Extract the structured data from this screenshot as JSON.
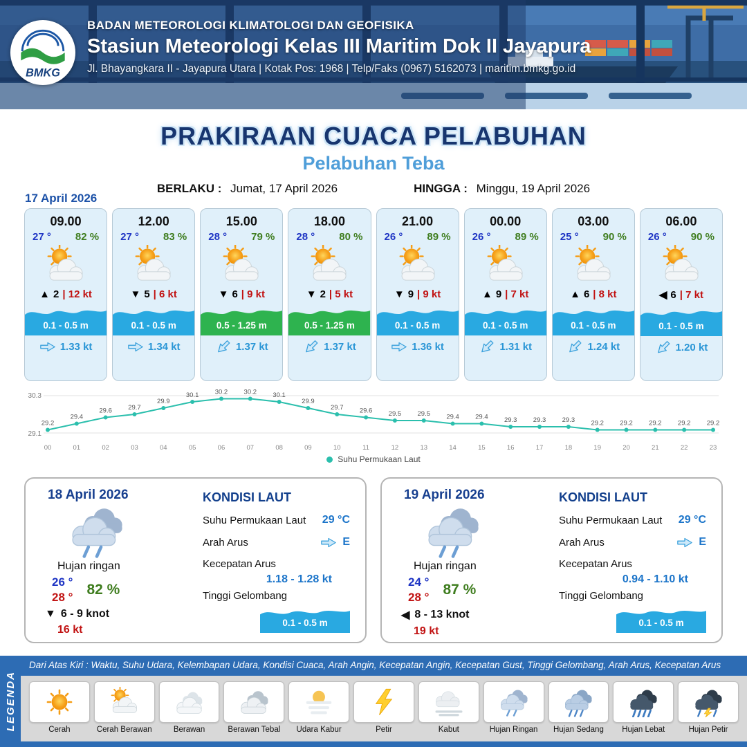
{
  "colors": {
    "header_navy": "#1d3a66",
    "wave_blue": "#29a9e1",
    "wave_green": "#2eb34f",
    "temp_blue": "#1f35c4",
    "humidity_green": "#3f7d1f",
    "gust_red": "#c11212",
    "legend_blue": "#2d6cb4"
  },
  "header": {
    "logo_text": "BMKG",
    "org_line": "BADAN METEOROLOGI KLIMATOLOGI DAN GEOFISIKA",
    "station_line": "Stasiun Meteorologi Kelas III Maritim Dok II Jayapura",
    "address_line": "Jl. Bhayangkara II - Jayapura Utara | Kotak Pos: 1968 | Telp/Faks (0967) 5162073 | maritim.bmkg.go.id"
  },
  "title": {
    "main": "PRAKIRAAN CUACA PELABUHAN",
    "sub": "Pelabuhan Teba",
    "berlaku_label": "BERLAKU :",
    "berlaku_value": "Jumat, 17 April 2026",
    "hingga_label": "HINGGA :",
    "hingga_value": "Minggu, 19 April 2026"
  },
  "forecast": {
    "date": "17 April 2026",
    "cards": [
      {
        "time": "09.00",
        "temp": "27 °",
        "humidity": "82 %",
        "icon": "cerah-berawan",
        "wind_arrow": "▲",
        "wind_speed": "2",
        "wind_gust": "| 12 kt",
        "wave": "0.1 - 0.5 m",
        "wave_color": "blue",
        "current": "1.33 kt",
        "current_dir_deg": 0
      },
      {
        "time": "12.00",
        "temp": "27 °",
        "humidity": "83 %",
        "icon": "cerah-berawan",
        "wind_arrow": "▼",
        "wind_speed": "5",
        "wind_gust": "| 6 kt",
        "wave": "0.1 - 0.5 m",
        "wave_color": "blue",
        "current": "1.34 kt",
        "current_dir_deg": 0
      },
      {
        "time": "15.00",
        "temp": "28 °",
        "humidity": "79 %",
        "icon": "cerah-berawan",
        "wind_arrow": "▼",
        "wind_speed": "6",
        "wind_gust": "| 9 kt",
        "wave": "0.5 - 1.25 m",
        "wave_color": "green",
        "current": "1.37 kt",
        "current_dir_deg": 135
      },
      {
        "time": "18.00",
        "temp": "28 °",
        "humidity": "80 %",
        "icon": "cerah-berawan",
        "wind_arrow": "▼",
        "wind_speed": "2",
        "wind_gust": "| 5 kt",
        "wave": "0.5 - 1.25 m",
        "wave_color": "green",
        "current": "1.37 kt",
        "current_dir_deg": 135
      },
      {
        "time": "21.00",
        "temp": "26 °",
        "humidity": "89 %",
        "icon": "cerah-berawan",
        "wind_arrow": "▼",
        "wind_speed": "9",
        "wind_gust": "| 9 kt",
        "wave": "0.1 - 0.5 m",
        "wave_color": "blue",
        "current": "1.36 kt",
        "current_dir_deg": 0
      },
      {
        "time": "00.00",
        "temp": "26 °",
        "humidity": "89 %",
        "icon": "cerah-berawan",
        "wind_arrow": "▲",
        "wind_speed": "9",
        "wind_gust": "| 7 kt",
        "wave": "0.1 - 0.5 m",
        "wave_color": "blue",
        "current": "1.31 kt",
        "current_dir_deg": 135
      },
      {
        "time": "03.00",
        "temp": "25 °",
        "humidity": "90 %",
        "icon": "cerah-berawan",
        "wind_arrow": "▲",
        "wind_speed": "6",
        "wind_gust": "| 8 kt",
        "wave": "0.1 - 0.5 m",
        "wave_color": "blue",
        "current": "1.24 kt",
        "current_dir_deg": 135
      },
      {
        "time": "06.00",
        "temp": "26 °",
        "humidity": "90 %",
        "icon": "cerah-berawan",
        "wind_arrow": "◀",
        "wind_speed": "6",
        "wind_gust": "| 7 kt",
        "wave": "0.1 - 0.5 m",
        "wave_color": "blue",
        "current": "1.20 kt",
        "current_dir_deg": 135
      }
    ]
  },
  "chart_data": {
    "type": "line",
    "x": [
      "00",
      "01",
      "02",
      "03",
      "04",
      "05",
      "06",
      "07",
      "08",
      "09",
      "10",
      "11",
      "12",
      "13",
      "14",
      "15",
      "16",
      "17",
      "18",
      "19",
      "20",
      "21",
      "22",
      "23"
    ],
    "values": [
      29.2,
      29.4,
      29.6,
      29.7,
      29.9,
      30.1,
      30.2,
      30.2,
      30.1,
      29.9,
      29.7,
      29.6,
      29.5,
      29.5,
      29.4,
      29.4,
      29.3,
      29.3,
      29.3,
      29.2,
      29.2,
      29.2,
      29.2,
      29.2
    ],
    "series_label": "Suhu Permukaan Laut",
    "ylim": [
      29.1,
      30.3
    ],
    "line_color": "#2bbfad",
    "grid": true,
    "legend_position": "bottom"
  },
  "daily": [
    {
      "date": "18 April 2026",
      "icon": "hujan-ringan",
      "condition": "Hujan ringan",
      "temp_min": "26 °",
      "temp_max": "28 °",
      "humidity": "82 %",
      "wind_arrow": "▼",
      "wind_range": "6 - 9 knot",
      "gust": "16 kt",
      "sea": {
        "title": "KONDISI LAUT",
        "sst_label": "Suhu Permukaan Laut",
        "sst_value": "29 °C",
        "current_dir_label": "Arah Arus",
        "current_dir_value": "E",
        "current_speed_label": "Kecepatan Arus",
        "current_speed_value": "1.18 - 1.28 kt",
        "wave_label": "Tinggi Gelombang",
        "wave_value": "0.1 - 0.5 m"
      }
    },
    {
      "date": "19 April 2026",
      "icon": "hujan-ringan",
      "condition": "Hujan ringan",
      "temp_min": "24 °",
      "temp_max": "28 °",
      "humidity": "87 %",
      "wind_arrow": "◀",
      "wind_range": "8 - 13 knot",
      "gust": "19 kt",
      "sea": {
        "title": "KONDISI LAUT",
        "sst_label": "Suhu Permukaan Laut",
        "sst_value": "29 °C",
        "current_dir_label": "Arah Arus",
        "current_dir_value": "E",
        "current_speed_label": "Kecepatan Arus",
        "current_speed_value": "0.94 - 1.10 kt",
        "wave_label": "Tinggi Gelombang",
        "wave_value": "0.1 - 0.5 m"
      }
    }
  ],
  "legend": {
    "title": "LEGENDA",
    "description": "Dari Atas Kiri : Waktu, Suhu Udara, Kelembapan Udara, Kondisi Cuaca, Arah Angin, Kecepatan Angin, Kecepatan Gust, Tinggi Gelombang, Arah Arus, Kecepatan Arus",
    "items": [
      {
        "label": "Cerah",
        "icon": "cerah"
      },
      {
        "label": "Cerah Berawan",
        "icon": "cerah-berawan"
      },
      {
        "label": "Berawan",
        "icon": "berawan"
      },
      {
        "label": "Berawan Tebal",
        "icon": "berawan-tebal"
      },
      {
        "label": "Udara Kabur",
        "icon": "udara-kabur"
      },
      {
        "label": "Petir",
        "icon": "petir"
      },
      {
        "label": "Kabut",
        "icon": "kabut"
      },
      {
        "label": "Hujan Ringan",
        "icon": "hujan-ringan"
      },
      {
        "label": "Hujan Sedang",
        "icon": "hujan-sedang"
      },
      {
        "label": "Hujan Lebat",
        "icon": "hujan-lebat"
      },
      {
        "label": "Hujan Petir",
        "icon": "hujan-petir"
      }
    ]
  }
}
